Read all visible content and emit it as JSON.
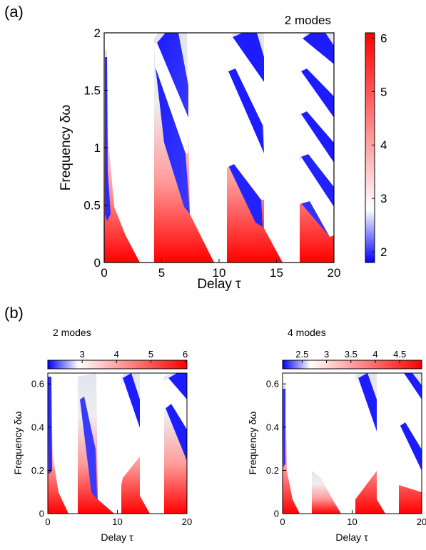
{
  "panel_labels": {
    "a": "(a)",
    "b": "(b)"
  },
  "chart_data": [
    {
      "type": "heatmap",
      "panel": "(a)",
      "title": "2 modes",
      "xlabel": "Delay τ",
      "ylabel": "Frequency δω",
      "xlim": [
        0,
        20
      ],
      "ylim": [
        0,
        2
      ],
      "xticks": [
        "0",
        "5",
        "10",
        "15",
        "20"
      ],
      "yticks": [
        "0",
        "0.5",
        "1",
        "1.5",
        "2"
      ],
      "colorbar": {
        "orientation": "vertical",
        "range": [
          1.8,
          6.1
        ],
        "ticks": [
          "2",
          "3",
          "4",
          "5",
          "6"
        ],
        "colors": [
          "#0000ff",
          "#ffffff",
          "#ff0000"
        ],
        "mid": 2.8
      },
      "grid": false,
      "regions": [
        {
          "x0": 0,
          "x1": 0.35,
          "curve": "left",
          "ymax": 1.85
        },
        {
          "x0": 4.35,
          "x1": 7.1,
          "curve": "diag"
        },
        {
          "x0": 10.7,
          "x1": 13.6,
          "curve": "diag"
        },
        {
          "x0": 17.0,
          "x1": 20.0,
          "curve": "diag"
        }
      ]
    },
    {
      "type": "heatmap",
      "panel": "(b)-left",
      "title": "2 modes",
      "xlabel": "Delay τ",
      "ylabel": "Frequency δω",
      "xlim": [
        0,
        20
      ],
      "ylim": [
        0,
        0.65
      ],
      "xticks": [
        "0",
        "10",
        "20"
      ],
      "yticks": [
        "0",
        "0.2",
        "0.4",
        "0.6"
      ],
      "colorbar": {
        "orientation": "horizontal",
        "range": [
          2.0,
          6.05
        ],
        "ticks": [
          "3",
          "4",
          "5",
          "6"
        ],
        "colors": [
          "#0000ff",
          "#ffffff",
          "#ff0000"
        ],
        "mid": 2.9
      }
    },
    {
      "type": "heatmap",
      "panel": "(b)-right",
      "title": "4 modes",
      "xlabel": "Delay τ",
      "ylabel": "Frequency δω",
      "xlim": [
        0,
        20
      ],
      "ylim": [
        0,
        0.65
      ],
      "xticks": [
        "0",
        "10",
        "20"
      ],
      "yticks": [
        "0",
        "0.2",
        "0.4",
        "0.6"
      ],
      "colorbar": {
        "orientation": "horizontal",
        "range": [
          2.1,
          4.95
        ],
        "ticks": [
          "2.5",
          "3",
          "3.5",
          "4",
          "4.5"
        ],
        "colors": [
          "#0000ff",
          "#ffffff",
          "#ff0000"
        ],
        "mid": 2.7
      }
    }
  ]
}
